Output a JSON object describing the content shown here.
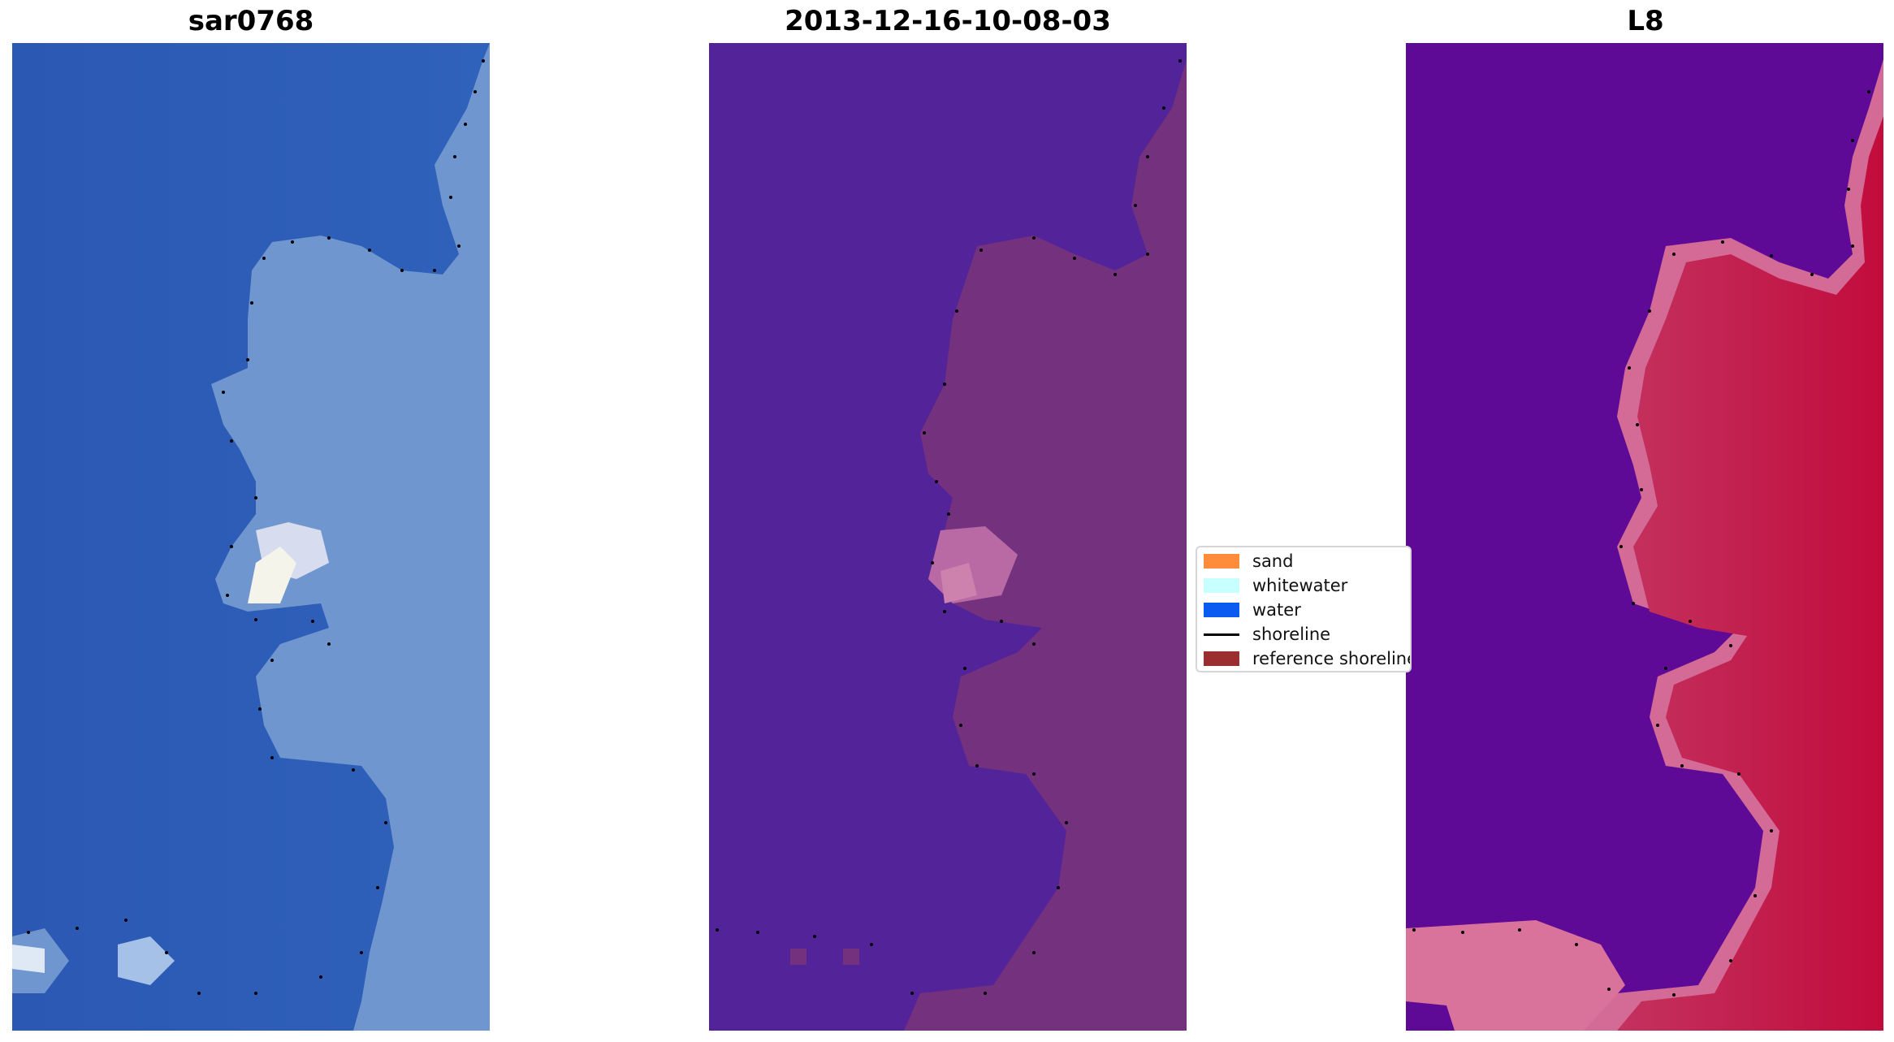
{
  "panels": [
    {
      "title": "sar0768"
    },
    {
      "title": "2013-12-16-10-08-03"
    },
    {
      "title": "L8"
    }
  ],
  "legend": {
    "items": [
      {
        "label": "sand",
        "color": "#ff8c3a",
        "kind": "patch"
      },
      {
        "label": "whitewater",
        "color": "#c8ffff",
        "kind": "patch"
      },
      {
        "label": "water",
        "color": "#0a5cf0",
        "kind": "patch"
      },
      {
        "label": "shoreline",
        "color": "#000000",
        "kind": "line"
      },
      {
        "label": "reference shoreline",
        "color": "#9b2e2e",
        "kind": "patch"
      }
    ]
  },
  "colors": {
    "rgb_water": "#2d5db5",
    "rgb_land": "#6d93cf",
    "rgb_bright": "#f2f4ee",
    "class_water": "#53239a",
    "class_land": "#74327e",
    "class_whitewater": "#c87aab",
    "index_water": "#5e0a96",
    "index_land": "#c21a4a",
    "index_edge": "#d7739b",
    "shoreline_dots": "#000000"
  }
}
